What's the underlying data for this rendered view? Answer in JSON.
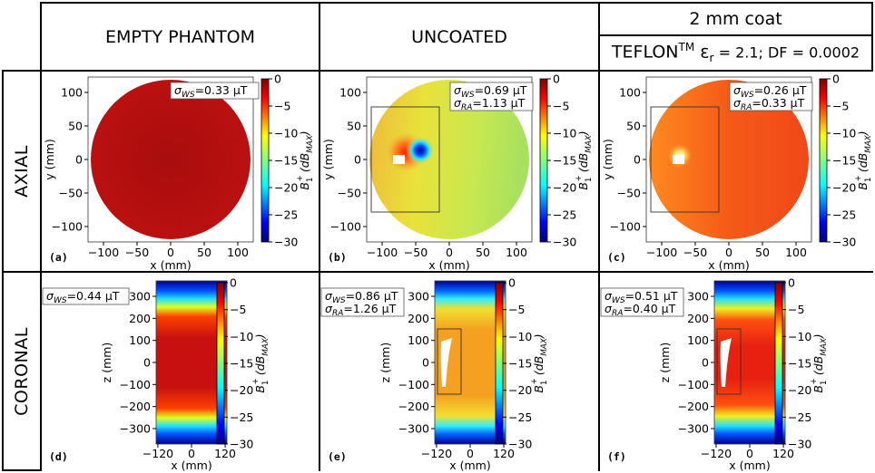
{
  "headers": {
    "col1": "EMPTY PHANTOM",
    "col2": "UNCOATED",
    "col3_top": "2 mm coat",
    "col3_material": "TEFLON",
    "col3_tm": "TM",
    "col3_params_eps": "ε",
    "col3_params_r": "r",
    "col3_params_rest": " = 2.1; DF = 0.0002"
  },
  "rows": {
    "axial": "AXIAL",
    "coronal": "CORONAL"
  },
  "axial": {
    "xlabel": "x (mm)",
    "ylabel": "y (mm)",
    "xticks": [
      "−100",
      "−50",
      "0",
      "50",
      "100"
    ],
    "yticks": [
      "100",
      "50",
      "0",
      "−50",
      "−100"
    ]
  },
  "coronal": {
    "xlabel": "x (mm)",
    "ylabel": "z (mm)",
    "xticks": [
      "−120",
      "0",
      "120"
    ],
    "yticks": [
      "300",
      "200",
      "100",
      "0",
      "−100",
      "−200",
      "−300"
    ]
  },
  "colorbar": {
    "label": "B",
    "label_sub": "1",
    "label_sup": "+",
    "label_unit": "(dB",
    "label_unit_sub": "MAX",
    "label_close": ")",
    "ticks": [
      "0",
      "−5",
      "−10",
      "−15",
      "−20",
      "−25",
      "−30"
    ],
    "range": [
      -30,
      0
    ]
  },
  "panels": {
    "a": {
      "letter": "(a)",
      "line1": "σ",
      "line1_sub": "WS",
      "line1_val": "=0.33 μT"
    },
    "b": {
      "letter": "(b)",
      "line1": "σ",
      "line1_sub": "WS",
      "line1_val": "=0.69 μT",
      "line2": "σ",
      "line2_sub": "RA",
      "line2_val": "=1.13 μT"
    },
    "c": {
      "letter": "(c)",
      "line1": "σ",
      "line1_sub": "WS",
      "line1_val": "=0.26 μT",
      "line2": "σ",
      "line2_sub": "RA",
      "line2_val": "=0.33 μT"
    },
    "d": {
      "letter": "(d)",
      "line1": "σ",
      "line1_sub": "WS",
      "line1_val": "=0.44 μT"
    },
    "e": {
      "letter": "(e)",
      "line1": "σ",
      "line1_sub": "WS",
      "line1_val": "=0.86 μT",
      "line2": "σ",
      "line2_sub": "RA",
      "line2_val": "=1.26 μT"
    },
    "f": {
      "letter": "(f)",
      "line1": "σ",
      "line1_sub": "WS",
      "line1_val": "=0.51 μT",
      "line2": "σ",
      "line2_sub": "RA",
      "line2_val": "=0.40 μT"
    }
  },
  "colors": {
    "border": "#000000",
    "dark_red": "#b50d0d",
    "orange": "#f05a1e",
    "yellow": "#e6e43c"
  }
}
